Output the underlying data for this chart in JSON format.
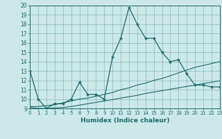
{
  "xlabel": "Humidex (Indice chaleur)",
  "bg_color": "#cce8e8",
  "line_color": "#1a6b6b",
  "xlim": [
    0,
    23
  ],
  "ylim": [
    9,
    20
  ],
  "yticks": [
    9,
    10,
    11,
    12,
    13,
    14,
    15,
    16,
    17,
    18,
    19,
    20
  ],
  "xticks": [
    0,
    1,
    2,
    3,
    4,
    5,
    6,
    7,
    8,
    9,
    10,
    11,
    12,
    13,
    14,
    15,
    16,
    17,
    18,
    19,
    20,
    21,
    22,
    23
  ],
  "main_x": [
    0,
    1,
    2,
    3,
    4,
    5,
    6,
    7,
    8,
    9,
    10,
    11,
    12,
    13,
    14,
    15,
    16,
    17,
    18,
    19,
    20,
    21,
    22,
    23
  ],
  "main_y": [
    13.0,
    10.0,
    9.0,
    9.5,
    9.5,
    10.0,
    11.8,
    10.5,
    10.5,
    10.0,
    14.5,
    16.5,
    19.8,
    18.0,
    16.5,
    16.5,
    15.0,
    14.0,
    14.2,
    12.7,
    11.5,
    11.5,
    11.3,
    11.3
  ],
  "trend1_x": [
    0,
    1,
    2,
    3,
    4,
    5,
    6,
    7,
    8,
    9,
    10,
    11,
    12,
    13,
    14,
    15,
    16,
    17,
    18,
    19,
    20,
    21,
    22,
    23
  ],
  "trend1_y": [
    9.2,
    9.2,
    9.3,
    9.4,
    9.6,
    9.8,
    10.0,
    10.1,
    10.3,
    10.5,
    10.7,
    11.0,
    11.2,
    11.5,
    11.7,
    12.0,
    12.2,
    12.5,
    12.8,
    13.1,
    13.4,
    13.6,
    13.8,
    14.0
  ],
  "trend2_x": [
    0,
    1,
    2,
    3,
    4,
    5,
    6,
    7,
    8,
    9,
    10,
    11,
    12,
    13,
    14,
    15,
    16,
    17,
    18,
    19,
    20,
    21,
    22,
    23
  ],
  "trend2_y": [
    9.1,
    9.0,
    9.0,
    9.05,
    9.1,
    9.2,
    9.35,
    9.5,
    9.65,
    9.8,
    9.95,
    10.1,
    10.25,
    10.4,
    10.6,
    10.75,
    10.9,
    11.05,
    11.2,
    11.35,
    11.5,
    11.65,
    11.8,
    11.95
  ]
}
